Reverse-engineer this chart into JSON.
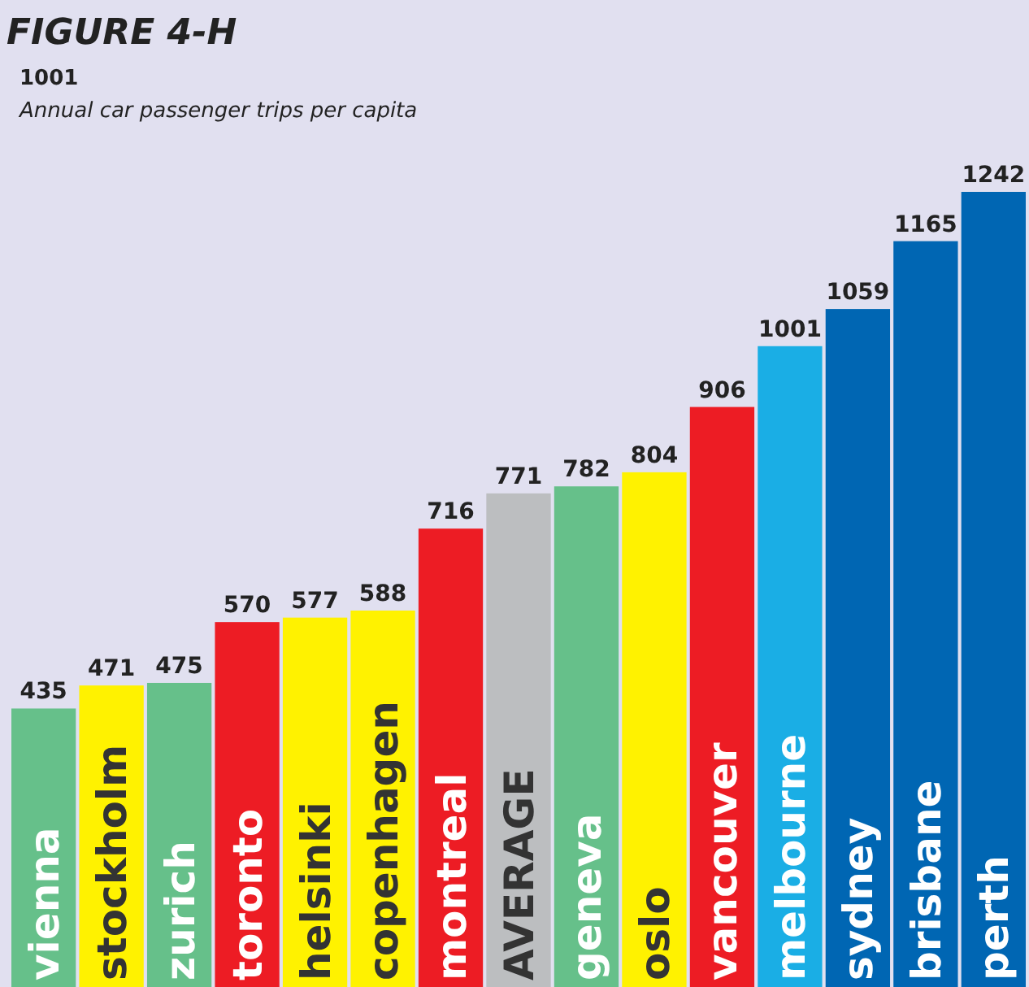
{
  "chart_data": {
    "type": "bar",
    "title": "FIGURE 4-H",
    "subtitle": "1001",
    "annotations": [
      "Annual car passenger trips per capita"
    ],
    "categories": [
      "vienna",
      "stockholm",
      "zurich",
      "toronto",
      "helsinki",
      "copenhagen",
      "montreal",
      "AVERAGE",
      "geneva",
      "oslo",
      "vancouver",
      "melbourne",
      "sydney",
      "brisbane",
      "perth"
    ],
    "values": [
      435,
      471,
      475,
      570,
      577,
      588,
      716,
      771,
      782,
      804,
      906,
      1001,
      1059,
      1165,
      1242
    ],
    "colors": [
      "#66c08a",
      "#fff200",
      "#66c08a",
      "#ed1c24",
      "#fff200",
      "#fff200",
      "#ed1c24",
      "#bcbec0",
      "#66c08a",
      "#fff200",
      "#ed1c24",
      "#1aaee5",
      "#0066b3",
      "#0066b3",
      "#0066b3"
    ],
    "data_labels": true
  }
}
